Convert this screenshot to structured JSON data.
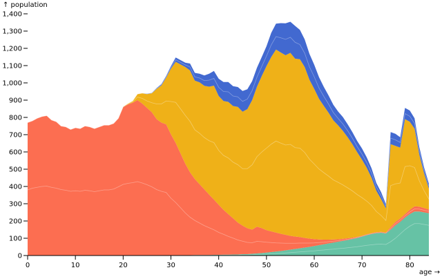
{
  "chart_data": {
    "type": "area",
    "stacked": true,
    "title": "",
    "xlabel": "age →",
    "ylabel": "↑ population",
    "xlim": [
      0,
      84
    ],
    "ylim": [
      0,
      1400
    ],
    "xticks": [
      "0",
      "10",
      "20",
      "30",
      "40",
      "50",
      "60",
      "70",
      "80"
    ],
    "yticks": [
      "0",
      "100",
      "200",
      "300",
      "400",
      "500",
      "600",
      "700",
      "800",
      "900",
      "1,000",
      "1,100",
      "1,200",
      "1,300",
      "1,400"
    ],
    "grid": false,
    "legend": "none",
    "ages": [
      0,
      1,
      2,
      3,
      4,
      5,
      6,
      7,
      8,
      9,
      10,
      11,
      12,
      13,
      14,
      15,
      16,
      17,
      18,
      19,
      20,
      21,
      22,
      23,
      24,
      25,
      26,
      27,
      28,
      29,
      30,
      31,
      32,
      33,
      34,
      35,
      36,
      37,
      38,
      39,
      40,
      41,
      42,
      43,
      44,
      45,
      46,
      47,
      48,
      49,
      50,
      51,
      52,
      53,
      54,
      55,
      56,
      57,
      58,
      59,
      60,
      61,
      62,
      63,
      64,
      65,
      66,
      67,
      68,
      69,
      70,
      71,
      72,
      73,
      74,
      75,
      76,
      77,
      78,
      79,
      80,
      81,
      82,
      83,
      84
    ],
    "series": [
      {
        "color": "#66c2a5",
        "values": [
          0,
          0,
          0,
          0,
          0,
          0,
          0,
          0,
          0,
          0,
          0,
          0,
          0,
          0,
          0,
          0,
          0,
          0,
          0,
          0,
          0,
          0,
          0,
          0,
          0,
          0,
          0,
          0,
          0,
          0,
          2,
          2,
          2,
          2,
          2,
          3,
          3,
          3,
          3,
          4,
          4,
          5,
          5,
          6,
          6,
          8,
          8,
          10,
          12,
          14,
          17,
          20,
          23,
          26,
          30,
          34,
          38,
          42,
          46,
          50,
          55,
          60,
          65,
          70,
          75,
          80,
          85,
          90,
          96,
          102,
          110,
          118,
          125,
          130,
          132,
          128,
          150,
          175,
          195,
          220,
          240,
          255,
          255,
          250,
          245
        ],
        "breaks": [
          [
            0,
            0,
            0,
            0,
            0,
            0,
            0,
            0,
            0,
            0,
            0,
            0,
            0,
            0,
            0,
            0,
            0,
            0,
            0,
            0,
            0,
            0,
            0,
            0,
            0,
            0,
            0,
            0,
            0,
            0,
            1,
            1,
            1,
            1,
            1,
            1,
            1,
            1,
            1,
            2,
            2,
            2,
            2,
            3,
            3,
            4,
            4,
            5,
            6,
            7,
            8,
            10,
            11,
            13,
            15,
            17,
            19,
            21,
            23,
            25,
            27,
            30,
            32,
            35,
            37,
            40,
            42,
            45,
            48,
            51,
            55,
            59,
            62,
            65,
            66,
            64,
            80,
            100,
            125,
            150,
            170,
            185,
            185,
            180,
            175
          ]
        ]
      },
      {
        "color": "#fc6e51",
        "values": [
          770,
          780,
          795,
          805,
          810,
          785,
          775,
          750,
          745,
          730,
          740,
          735,
          750,
          745,
          735,
          745,
          755,
          755,
          765,
          795,
          860,
          875,
          885,
          900,
          880,
          855,
          830,
          790,
          770,
          760,
          700,
          650,
          590,
          530,
          480,
          440,
          410,
          380,
          350,
          320,
          290,
          260,
          235,
          210,
          185,
          165,
          150,
          140,
          155,
          145,
          130,
          120,
          110,
          100,
          90,
          80,
          72,
          65,
          56,
          48,
          40,
          33,
          27,
          22,
          18,
          14,
          12,
          10,
          8,
          6,
          5,
          5,
          5,
          5,
          5,
          5,
          15,
          20,
          20,
          20,
          25,
          30,
          28,
          25,
          22
        ],
        "breaks": [
          [
            380,
            390,
            395,
            400,
            402,
            395,
            390,
            382,
            378,
            372,
            375,
            372,
            378,
            375,
            370,
            375,
            380,
            380,
            385,
            398,
            412,
            418,
            422,
            428,
            420,
            410,
            398,
            382,
            372,
            365,
            330,
            305,
            275,
            245,
            220,
            200,
            185,
            170,
            158,
            145,
            130,
            118,
            106,
            95,
            84,
            75,
            68,
            64,
            70,
            66,
            60,
            55,
            50,
            46,
            41,
            37,
            33,
            30,
            26,
            22,
            18,
            15,
            12,
            10,
            8,
            6,
            5,
            4,
            3,
            3,
            2,
            2,
            2,
            2,
            2,
            2,
            7,
            10,
            10,
            10,
            12,
            15,
            14,
            12,
            11
          ]
        ]
      },
      {
        "color": "#efb118",
        "values": [
          0,
          0,
          0,
          0,
          0,
          0,
          0,
          0,
          0,
          0,
          0,
          0,
          0,
          0,
          0,
          0,
          0,
          0,
          0,
          0,
          2,
          5,
          10,
          35,
          60,
          80,
          110,
          175,
          215,
          270,
          380,
          470,
          515,
          560,
          590,
          570,
          590,
          600,
          625,
          660,
          630,
          630,
          650,
          650,
          670,
          660,
          690,
          750,
          810,
          880,
          950,
          1010,
          1060,
          1050,
          1040,
          1060,
          1030,
          1030,
          990,
          920,
          870,
          815,
          775,
          735,
          690,
          660,
          625,
          585,
          540,
          490,
          440,
          385,
          320,
          240,
          190,
          140,
          480,
          440,
          410,
          550,
          510,
          450,
          300,
          200,
          120
        ],
        "breaks": [
          [
            0,
            0,
            0,
            0,
            0,
            0,
            0,
            0,
            0,
            0,
            0,
            0,
            0,
            0,
            0,
            0,
            0,
            0,
            0,
            0,
            1,
            3,
            5,
            18,
            30,
            40,
            55,
            88,
            108,
            135,
            190,
            235,
            258,
            280,
            295,
            285,
            295,
            300,
            312,
            330,
            315,
            315,
            325,
            325,
            335,
            330,
            345,
            375,
            405,
            440,
            475,
            505,
            530,
            525,
            520,
            530,
            515,
            515,
            495,
            460,
            435,
            408,
            388,
            368,
            345,
            330,
            312,
            292,
            270,
            245,
            220,
            192,
            160,
            120,
            95,
            70,
            240,
            220,
            205,
            275,
            255,
            225,
            150,
            100,
            60
          ]
        ]
      },
      {
        "color": "#4269d0",
        "values": [
          0,
          0,
          0,
          0,
          0,
          0,
          0,
          0,
          0,
          0,
          0,
          0,
          0,
          0,
          0,
          0,
          0,
          0,
          0,
          0,
          0,
          0,
          0,
          0,
          0,
          2,
          2,
          5,
          8,
          10,
          15,
          25,
          25,
          25,
          40,
          45,
          50,
          60,
          75,
          85,
          100,
          110,
          115,
          115,
          115,
          120,
          115,
          110,
          110,
          110,
          115,
          140,
          150,
          170,
          185,
          180,
          190,
          170,
          160,
          150,
          140,
          125,
          110,
          100,
          90,
          80,
          80,
          75,
          70,
          65,
          65,
          60,
          55,
          45,
          40,
          25,
          70,
          70,
          60,
          65,
          65,
          60,
          45,
          35,
          30
        ],
        "breaks": [
          [
            0,
            0,
            0,
            0,
            0,
            0,
            0,
            0,
            0,
            0,
            0,
            0,
            0,
            0,
            0,
            0,
            0,
            0,
            0,
            0,
            0,
            0,
            0,
            0,
            0,
            1,
            1,
            2,
            4,
            5,
            7,
            12,
            12,
            12,
            20,
            22,
            25,
            30,
            38,
            42,
            50,
            55,
            58,
            58,
            58,
            60,
            58,
            55,
            55,
            55,
            58,
            70,
            75,
            85,
            92,
            90,
            95,
            85,
            80,
            75,
            70,
            62,
            55,
            50,
            45,
            40,
            40,
            38,
            35,
            32,
            32,
            30,
            28,
            22,
            20,
            12,
            35,
            35,
            30,
            32,
            32,
            30,
            22,
            18,
            15
          ]
        ]
      }
    ]
  }
}
